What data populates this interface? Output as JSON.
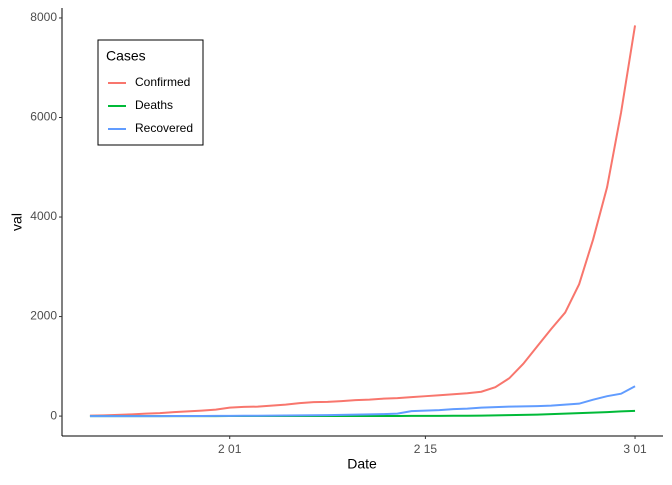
{
  "chart_data": {
    "type": "line",
    "x": [
      "01-22",
      "01-23",
      "01-24",
      "01-25",
      "01-26",
      "01-27",
      "01-28",
      "01-29",
      "01-30",
      "01-31",
      "02-01",
      "02-02",
      "02-03",
      "02-04",
      "02-05",
      "02-06",
      "02-07",
      "02-08",
      "02-09",
      "02-10",
      "02-11",
      "02-12",
      "02-13",
      "02-14",
      "02-15",
      "02-16",
      "02-17",
      "02-18",
      "02-19",
      "02-20",
      "02-21",
      "02-22",
      "02-23",
      "02-24",
      "02-25",
      "02-26",
      "02-27",
      "02-28",
      "02-29",
      "03-01"
    ],
    "series": [
      {
        "name": "Confirmed",
        "color": "#f8766d",
        "values": [
          10,
          15,
          25,
          35,
          50,
          60,
          80,
          95,
          110,
          130,
          170,
          185,
          190,
          210,
          230,
          260,
          280,
          285,
          300,
          320,
          330,
          350,
          360,
          380,
          400,
          420,
          440,
          460,
          490,
          580,
          760,
          1050,
          1400,
          1750,
          2080,
          2650,
          3550,
          4600,
          6100,
          7850
        ]
      },
      {
        "name": "Deaths",
        "color": "#00ba38",
        "values": [
          0,
          0,
          0,
          0,
          0,
          0,
          0,
          0,
          0,
          0,
          1,
          1,
          1,
          1,
          1,
          1,
          1,
          2,
          2,
          2,
          3,
          3,
          3,
          4,
          5,
          5,
          6,
          8,
          10,
          15,
          20,
          25,
          30,
          40,
          50,
          60,
          70,
          80,
          95,
          105
        ]
      },
      {
        "name": "Recovered",
        "color": "#619cff",
        "values": [
          0,
          0,
          0,
          0,
          0,
          0,
          1,
          2,
          3,
          4,
          5,
          6,
          8,
          10,
          12,
          14,
          18,
          20,
          25,
          30,
          35,
          40,
          50,
          100,
          110,
          120,
          140,
          150,
          170,
          180,
          190,
          195,
          200,
          210,
          230,
          250,
          330,
          400,
          450,
          600
        ]
      }
    ],
    "xlim": [
      "01-20",
      "03-03"
    ],
    "xticks": [
      {
        "value": "02-01",
        "label": "2 01"
      },
      {
        "value": "02-15",
        "label": "2 15"
      },
      {
        "value": "03-01",
        "label": "3 01"
      }
    ],
    "ylim": [
      -400,
      8200
    ],
    "yticks": [
      0,
      2000,
      4000,
      6000,
      8000
    ],
    "xlabel": "Date",
    "ylabel": "val",
    "legend_title": "Cases",
    "legend": "top-left",
    "grid": false
  }
}
